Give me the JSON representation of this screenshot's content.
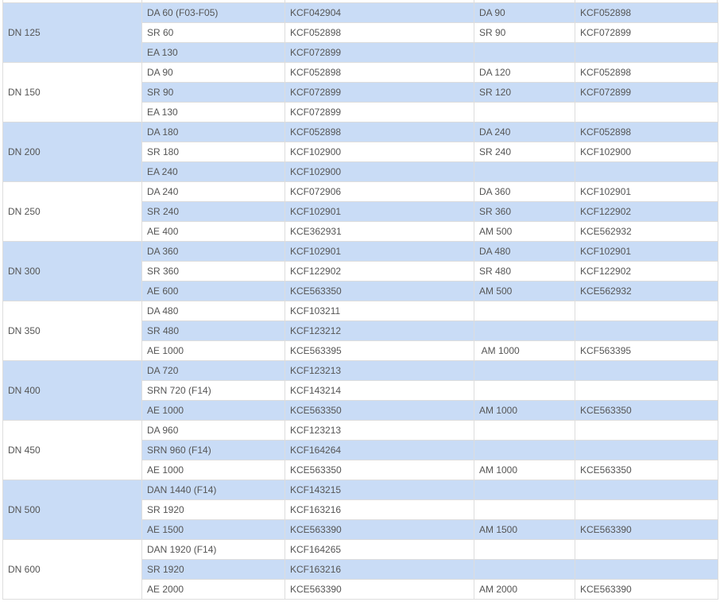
{
  "colors": {
    "stripe": "#c9dcf6",
    "border": "#dddddd",
    "text": "#555555"
  },
  "groups": [
    {
      "dn": "DN 125",
      "rows": [
        [
          "DA 60 (F03-F05)",
          "KCF042904",
          "DA 90",
          "KCF052898"
        ],
        [
          "SR 60",
          "KCF052898",
          "SR 90",
          "KCF072899"
        ],
        [
          "EA 130",
          "KCF072899",
          "",
          ""
        ]
      ]
    },
    {
      "dn": "DN 150",
      "rows": [
        [
          "DA 90",
          "KCF052898",
          "DA 120",
          "KCF052898"
        ],
        [
          "SR 90",
          "KCF072899",
          "SR 120",
          "KCF072899"
        ],
        [
          "EA 130",
          "KCF072899",
          "",
          ""
        ]
      ]
    },
    {
      "dn": "DN 200",
      "rows": [
        [
          "DA 180",
          "KCF052898",
          "DA 240",
          "KCF052898"
        ],
        [
          "SR 180",
          "KCF102900",
          "SR 240",
          "KCF102900"
        ],
        [
          "EA 240",
          "KCF102900",
          "",
          ""
        ]
      ]
    },
    {
      "dn": "DN 250",
      "rows": [
        [
          "DA 240",
          "KCF072906",
          "DA 360",
          "KCF102901"
        ],
        [
          "SR 240",
          "KCF102901",
          "SR 360",
          "KCF122902"
        ],
        [
          "AE 400",
          "KCE362931",
          "AM 500",
          "KCE562932"
        ]
      ]
    },
    {
      "dn": "DN 300",
      "rows": [
        [
          "DA 360",
          "KCF102901",
          "DA 480",
          "KCF102901"
        ],
        [
          "SR 360",
          "KCF122902",
          "SR 480",
          "KCF122902"
        ],
        [
          "AE 600",
          "KCE563350",
          "AM 500",
          "KCE562932"
        ]
      ]
    },
    {
      "dn": "DN 350",
      "rows": [
        [
          "DA 480",
          "KCF103211",
          "",
          ""
        ],
        [
          "SR 480",
          "KCF123212",
          "",
          ""
        ],
        [
          "AE 1000",
          "KCE563395",
          " AM 1000",
          "KCF563395"
        ]
      ]
    },
    {
      "dn": "DN 400",
      "rows": [
        [
          "DA 720",
          "KCF123213",
          "",
          ""
        ],
        [
          "SRN 720 (F14)",
          "KCF143214",
          "",
          ""
        ],
        [
          "AE 1000",
          "KCE563350",
          "AM 1000",
          "KCE563350"
        ]
      ]
    },
    {
      "dn": "DN 450",
      "rows": [
        [
          "DA 960",
          "KCF123213",
          "",
          ""
        ],
        [
          "SRN 960 (F14)",
          "KCF164264",
          "",
          ""
        ],
        [
          "AE 1000",
          "KCE563350",
          "AM 1000",
          "KCE563350"
        ]
      ]
    },
    {
      "dn": "DN 500",
      "rows": [
        [
          "DAN 1440 (F14)",
          "KCF143215",
          "",
          ""
        ],
        [
          "SR 1920",
          "KCF163216",
          "",
          ""
        ],
        [
          "AE 1500",
          "KCE563390",
          "AM 1500",
          "KCE563390"
        ]
      ]
    },
    {
      "dn": "DN 600",
      "rows": [
        [
          "DAN 1920 (F14)",
          "KCF164265",
          "",
          ""
        ],
        [
          "SR 1920",
          "KCF163216",
          "",
          ""
        ],
        [
          "AE 2000",
          "KCE563390",
          "AM 2000",
          "KCE563390"
        ]
      ]
    }
  ]
}
